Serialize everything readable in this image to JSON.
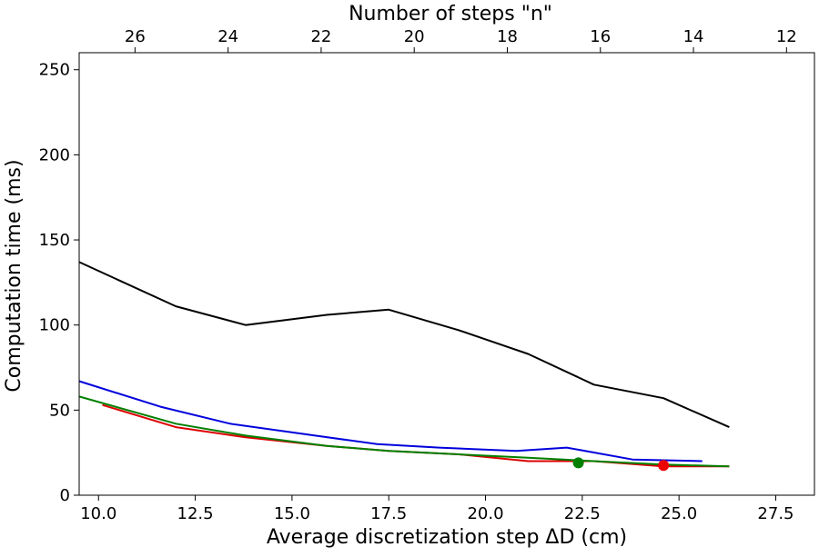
{
  "chart_data": {
    "type": "line",
    "xlabel": "Average discretization step ΔD (cm)",
    "ylabel": "Computation time (ms)",
    "top_xlabel": "Number of steps \"n\"",
    "xlim": [
      9.5,
      28.5
    ],
    "ylim": [
      0,
      260
    ],
    "top_xlim": [
      27.2,
      11.4
    ],
    "x_ticks": [
      10.0,
      12.5,
      15.0,
      17.5,
      20.0,
      22.5,
      25.0,
      27.5
    ],
    "x_tick_labels": [
      "10.0",
      "12.5",
      "15.0",
      "17.5",
      "20.0",
      "22.5",
      "25.0",
      "27.5"
    ],
    "y_ticks": [
      0,
      50,
      100,
      150,
      200,
      250
    ],
    "y_tick_labels": [
      "0",
      "50",
      "100",
      "150",
      "200",
      "250"
    ],
    "top_x_ticks": [
      26,
      24,
      22,
      20,
      18,
      16,
      14,
      12
    ],
    "top_x_tick_labels": [
      "26",
      "24",
      "22",
      "20",
      "18",
      "16",
      "14",
      "12"
    ],
    "grid": false,
    "series": [
      {
        "color": "#000000",
        "x": [
          9.5,
          12.0,
          13.8,
          15.9,
          17.5,
          19.3,
          21.1,
          22.8,
          24.6,
          26.3
        ],
        "y": [
          137,
          111,
          100,
          106,
          109,
          97,
          83,
          65,
          57,
          40
        ]
      },
      {
        "color": "#0000dd",
        "x": [
          9.5,
          11.6,
          13.4,
          15.6,
          17.2,
          18.8,
          20.8,
          22.1,
          23.8,
          25.6
        ],
        "y": [
          67,
          52,
          42,
          35,
          30,
          28,
          26,
          28,
          21,
          20
        ]
      },
      {
        "color": "#dd0000",
        "x": [
          10.1,
          12.0,
          13.8,
          15.9,
          17.5,
          19.3,
          21.1,
          22.8,
          24.6,
          26.3
        ],
        "y": [
          53,
          40,
          34,
          29,
          26,
          24,
          20,
          20,
          17,
          17
        ]
      },
      {
        "color": "#008000",
        "x": [
          9.5,
          12.0,
          13.8,
          15.9,
          17.5,
          19.3,
          21.1,
          22.8,
          24.6,
          26.3
        ],
        "y": [
          58,
          42,
          35,
          29,
          26,
          24,
          22,
          20,
          18,
          17
        ]
      }
    ],
    "markers": [
      {
        "color": "#008000",
        "x": 22.4,
        "y": 19
      },
      {
        "color": "#ee0000",
        "x": 24.6,
        "y": 17.5
      }
    ]
  }
}
